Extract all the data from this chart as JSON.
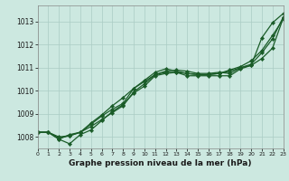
{
  "bg_color": "#cce8e0",
  "grid_color": "#aaccc4",
  "line_color": "#1a5c28",
  "xlabel": "Graphe pression niveau de la mer (hPa)",
  "ylim": [
    1007.5,
    1013.7
  ],
  "xlim": [
    0,
    23
  ],
  "yticks": [
    1008,
    1009,
    1010,
    1011,
    1012,
    1013
  ],
  "xticks": [
    0,
    1,
    2,
    3,
    4,
    5,
    6,
    7,
    8,
    9,
    10,
    11,
    12,
    13,
    14,
    15,
    16,
    17,
    18,
    19,
    20,
    21,
    22,
    23
  ],
  "series": [
    [
      1008.2,
      1008.2,
      1007.9,
      1007.7,
      1008.1,
      1008.3,
      1008.7,
      1009.1,
      1009.4,
      1009.9,
      1010.2,
      1010.65,
      1010.75,
      1010.8,
      1010.65,
      1010.65,
      1010.65,
      1010.65,
      1010.65,
      1010.95,
      1011.1,
      1012.3,
      1012.95,
      1013.35
    ],
    [
      1008.2,
      1008.2,
      1007.9,
      1008.1,
      1008.2,
      1008.55,
      1008.9,
      1009.2,
      1009.45,
      1010.1,
      1010.45,
      1010.8,
      1010.95,
      1010.85,
      1010.75,
      1010.7,
      1010.7,
      1010.75,
      1010.85,
      1011.0,
      1011.1,
      1011.4,
      1011.85,
      1013.15
    ],
    [
      1008.2,
      1008.2,
      1008.0,
      1008.05,
      1008.2,
      1008.45,
      1008.75,
      1009.05,
      1009.35,
      1009.95,
      1010.3,
      1010.7,
      1010.85,
      1010.9,
      1010.85,
      1010.75,
      1010.75,
      1010.8,
      1010.75,
      1011.0,
      1011.15,
      1011.65,
      1012.25,
      1013.2
    ],
    [
      1008.2,
      1008.2,
      1007.95,
      1008.05,
      1008.2,
      1008.6,
      1008.95,
      1009.35,
      1009.7,
      1010.1,
      1010.4,
      1010.7,
      1010.8,
      1010.8,
      1010.75,
      1010.7,
      1010.7,
      1010.75,
      1010.9,
      1011.05,
      1011.3,
      1011.75,
      1012.4,
      1013.1
    ]
  ]
}
